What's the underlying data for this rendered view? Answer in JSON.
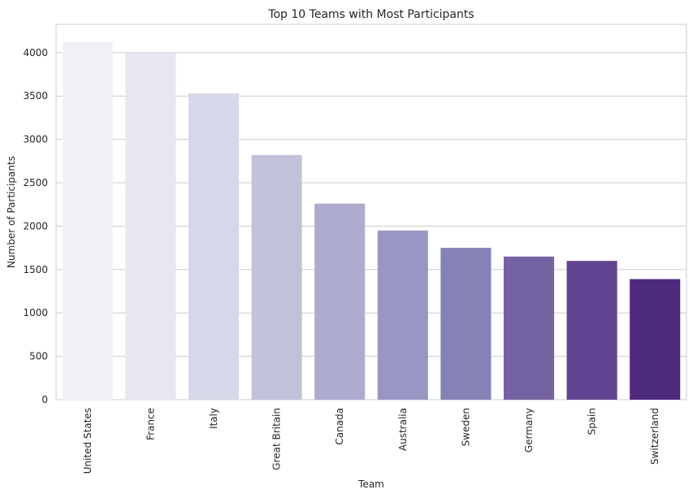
{
  "chart_data": {
    "type": "bar",
    "title": "Top 10 Teams with Most Participants",
    "xlabel": "Team",
    "ylabel": "Number of Participants",
    "categories": [
      "United States",
      "France",
      "Italy",
      "Great Britain",
      "Canada",
      "Australia",
      "Sweden",
      "Germany",
      "Spain",
      "Switzerland"
    ],
    "values": [
      4120,
      3990,
      3530,
      2820,
      2260,
      1950,
      1750,
      1650,
      1600,
      1390
    ],
    "colors": [
      "#f2f0f7",
      "#e7e6f1",
      "#d6d7e8",
      "#c1c1da",
      "#adabcd",
      "#9a96c3",
      "#8582b8",
      "#7463a2",
      "#614491",
      "#4e2a7d"
    ],
    "yticks": [
      0,
      500,
      1000,
      1500,
      2000,
      2500,
      3000,
      3500,
      4000
    ],
    "ylim": [
      0,
      4326
    ],
    "grid": true,
    "grid_axis": "y"
  }
}
